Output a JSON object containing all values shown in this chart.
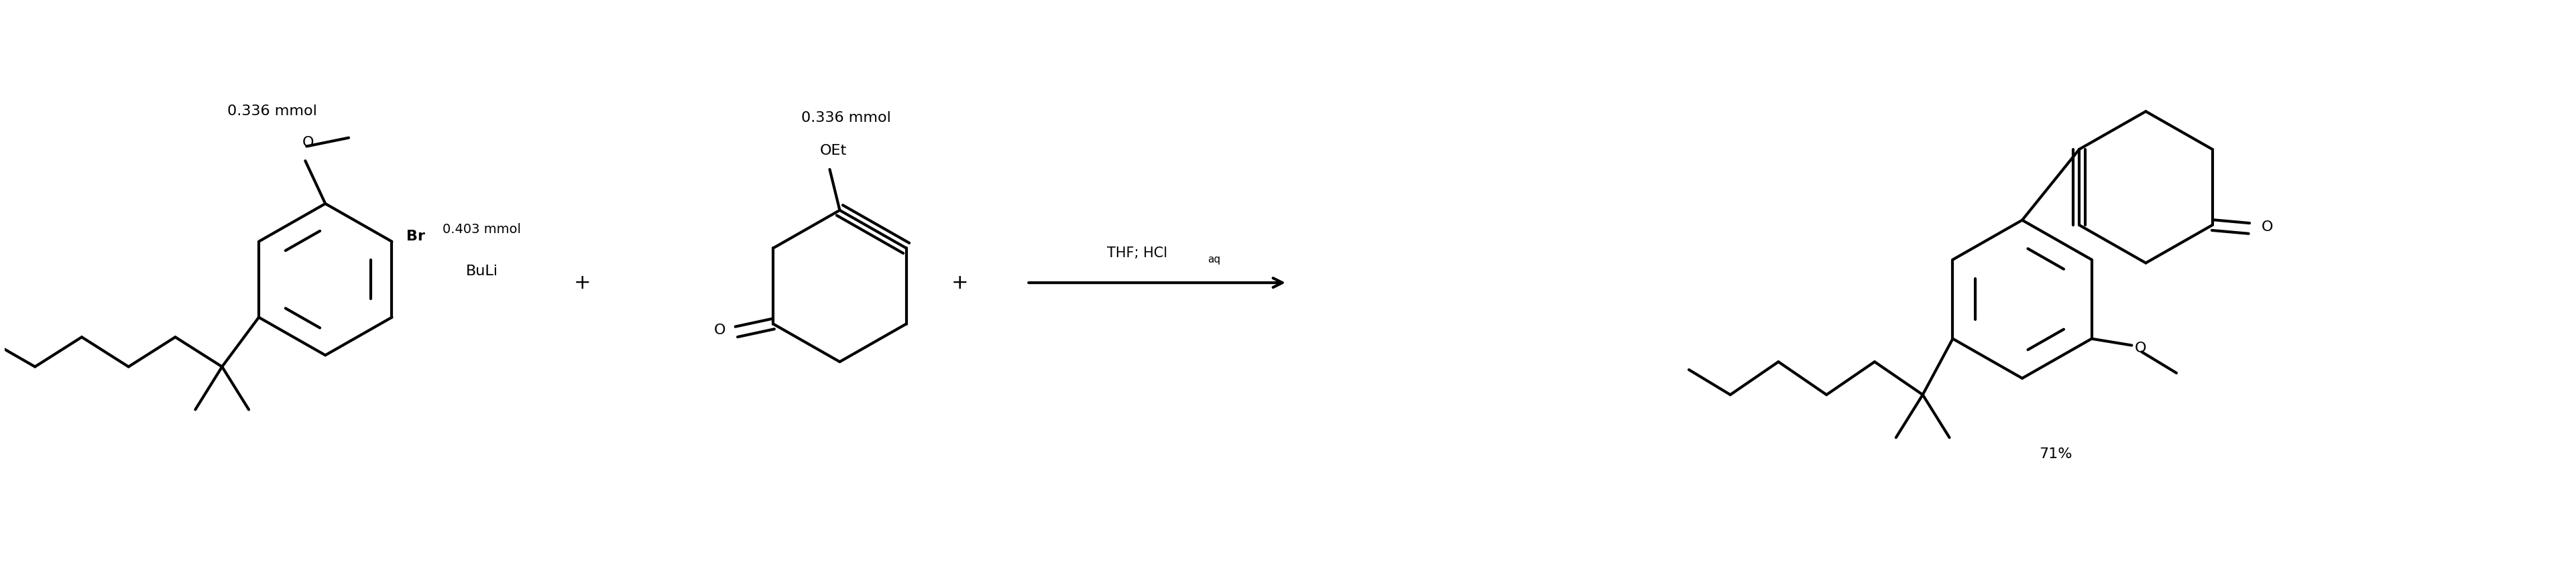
{
  "bg_color": "#ffffff",
  "line_color": "#000000",
  "line_width": 3.0,
  "font_size": 16,
  "label_0336_1": "0.336 mmol",
  "label_0336_2": "0.336 mmol",
  "label_0403": "0.403 mmol",
  "label_buli": "BuLi",
  "label_thf": "THF; HCl",
  "label_aq": "aq",
  "label_plus1": "+",
  "label_plus2": "+",
  "label_yield": "71%",
  "label_br": "Br",
  "label_oet": "OEt",
  "label_o1": "O",
  "label_o2": "O",
  "label_o3": "O",
  "label_o4": "O"
}
